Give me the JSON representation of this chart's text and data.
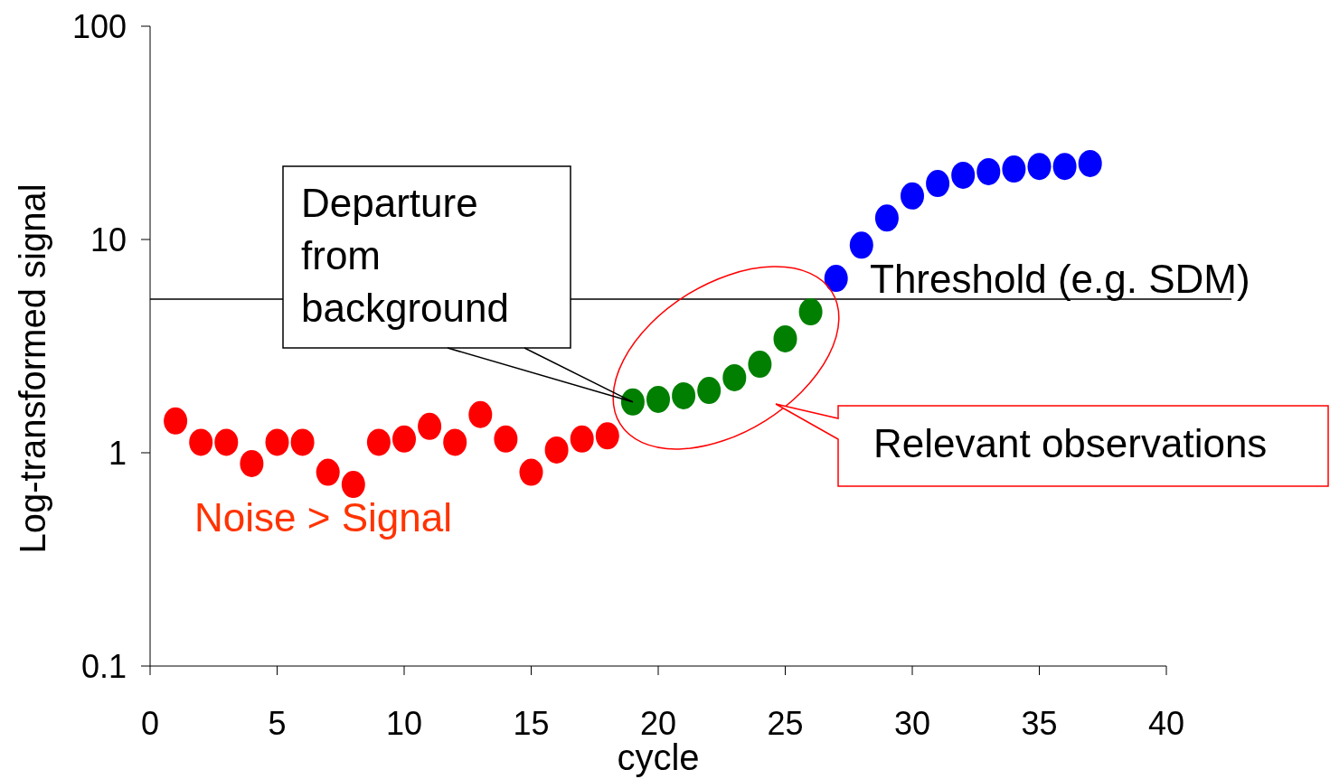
{
  "chart_data": {
    "type": "scatter",
    "ylabel": "Log-transformed signal",
    "xlabel": "cycle",
    "log": "y",
    "xlim": [
      0,
      40
    ],
    "xticks": [
      0,
      5,
      10,
      15,
      20,
      25,
      30,
      35,
      40
    ],
    "ylim": [
      0.1,
      100
    ],
    "yticks": [
      0.1,
      1,
      10,
      100
    ],
    "grid": false,
    "marker": "circle",
    "series": [
      {
        "color": "#ff0000",
        "x": [
          1,
          2,
          3,
          4,
          5,
          6,
          7,
          8,
          9,
          10,
          11,
          12,
          13,
          14,
          15,
          16,
          17,
          18
        ],
        "values": [
          1.41,
          1.12,
          1.12,
          0.89,
          1.12,
          1.12,
          0.81,
          0.71,
          1.12,
          1.16,
          1.33,
          1.12,
          1.51,
          1.16,
          0.81,
          1.03,
          1.16,
          1.2
        ]
      },
      {
        "color": "#007f00",
        "x": [
          19,
          20,
          21,
          22,
          23,
          24,
          25,
          26
        ],
        "values": [
          1.73,
          1.78,
          1.85,
          1.96,
          2.25,
          2.6,
          3.42,
          4.58
        ]
      },
      {
        "color": "#0000ff",
        "x": [
          27,
          28,
          29,
          30,
          31,
          32,
          33,
          34,
          35,
          36,
          37
        ],
        "values": [
          6.57,
          9.4,
          12.6,
          16.0,
          18.3,
          20.0,
          20.8,
          21.4,
          22.0,
          22.0,
          22.7
        ]
      }
    ],
    "ref_lines": [
      {
        "axis": "y",
        "value": 5.25,
        "label": "Threshold (e.g. SDM)",
        "color": "#000000"
      }
    ],
    "annotations": [
      {
        "text": "Departure from background",
        "x": 19,
        "y": 1.73
      },
      "Relevant observations",
      "Noise > Signal"
    ]
  }
}
